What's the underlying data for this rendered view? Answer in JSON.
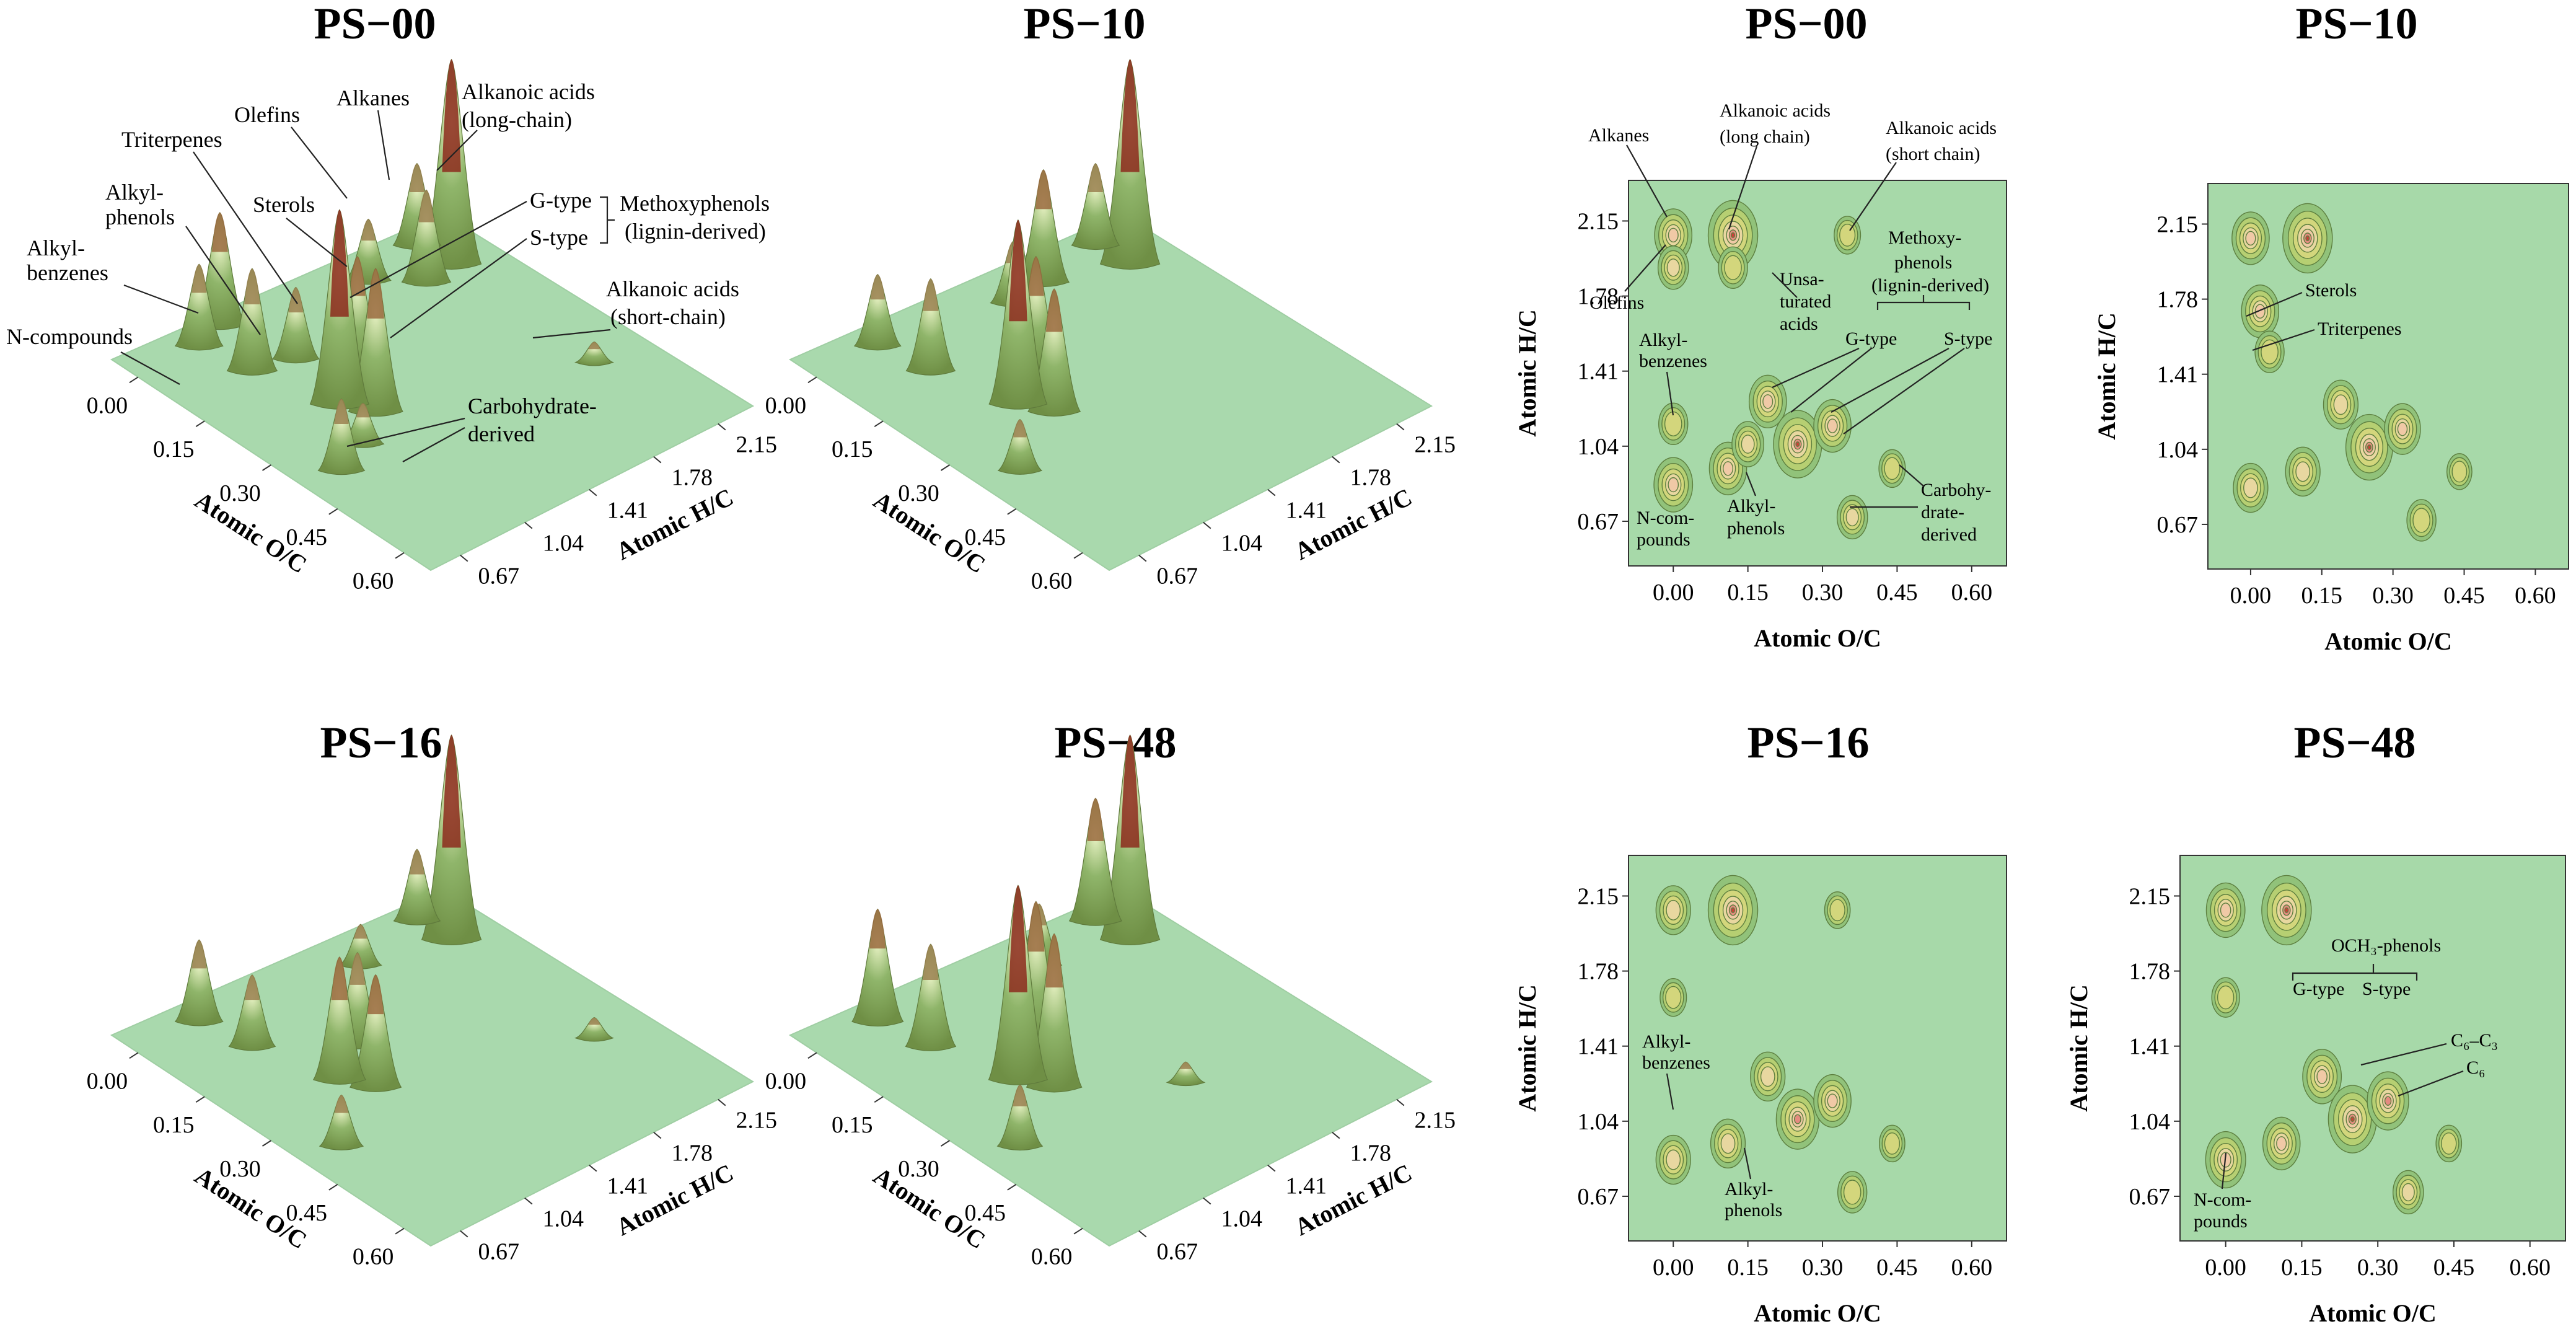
{
  "chart_data": [
    {
      "type": "surface3d",
      "title": "PS−00",
      "xlabel": "Atomic O/C",
      "ylabel": "Atomic H/C",
      "x_ticks": [
        "0.00",
        "0.15",
        "0.30",
        "0.45",
        "0.60"
      ],
      "y_ticks": [
        "0.67",
        "1.04",
        "1.41",
        "1.78",
        "2.15"
      ],
      "peaks": [
        {
          "x": 0.02,
          "y": 2.05,
          "h": 0.4
        },
        {
          "x": 0.04,
          "y": 1.72,
          "h": 0.3
        },
        {
          "x": 0.09,
          "y": 2.07,
          "h": 1.0
        },
        {
          "x": 0.1,
          "y": 1.9,
          "h": 0.45
        },
        {
          "x": -0.02,
          "y": 1.02,
          "h": 0.55
        },
        {
          "x": 0.0,
          "y": 0.85,
          "h": 0.4
        },
        {
          "x": 0.1,
          "y": 0.9,
          "h": 0.5
        },
        {
          "x": 0.12,
          "y": 1.1,
          "h": 0.35
        },
        {
          "x": 0.2,
          "y": 1.25,
          "h": 0.55
        },
        {
          "x": 0.25,
          "y": 1.02,
          "h": 0.95
        },
        {
          "x": 0.3,
          "y": 1.1,
          "h": 0.7
        },
        {
          "x": 0.38,
          "y": 0.7,
          "h": 0.35
        },
        {
          "x": 0.35,
          "y": 0.9,
          "h": 0.2
        },
        {
          "x": 0.42,
          "y": 2.05,
          "h": 0.1
        }
      ],
      "annotations": [
        "Olefins",
        "Alkanes",
        "Alkanoic acids",
        "(long-chain)",
        "Triterpenes",
        "Alkyl-",
        "phenols",
        "Sterols",
        "G-type",
        "S-type",
        "Methoxyphenols",
        "(lignin-derived)",
        "Alkyl-",
        "benzenes",
        "Alkanoic acids",
        "(short-chain)",
        "N-compounds",
        "Carbohydrate-",
        "derived"
      ]
    },
    {
      "type": "surface3d",
      "title": "PS−10",
      "xlabel": "Atomic O/C",
      "ylabel": "Atomic H/C",
      "x_ticks": [
        "0.00",
        "0.15",
        "0.30",
        "0.45",
        "0.60"
      ],
      "y_ticks": [
        "0.67",
        "1.04",
        "1.41",
        "1.78",
        "2.15"
      ],
      "peaks": [
        {
          "x": 0.02,
          "y": 2.05,
          "h": 0.4
        },
        {
          "x": 0.04,
          "y": 1.7,
          "h": 0.55
        },
        {
          "x": 0.09,
          "y": 2.07,
          "h": 1.0
        },
        {
          "x": 0.05,
          "y": 1.5,
          "h": 0.3
        },
        {
          "x": 0.0,
          "y": 0.85,
          "h": 0.35
        },
        {
          "x": 0.1,
          "y": 0.9,
          "h": 0.45
        },
        {
          "x": 0.2,
          "y": 1.25,
          "h": 0.55
        },
        {
          "x": 0.25,
          "y": 1.02,
          "h": 0.9
        },
        {
          "x": 0.3,
          "y": 1.1,
          "h": 0.6
        },
        {
          "x": 0.38,
          "y": 0.7,
          "h": 0.25
        }
      ]
    },
    {
      "type": "surface3d",
      "title": "PS−16",
      "xlabel": "Atomic O/C",
      "ylabel": "Atomic H/C",
      "x_ticks": [
        "0.00",
        "0.15",
        "0.30",
        "0.45",
        "0.60"
      ],
      "y_ticks": [
        "0.67",
        "1.04",
        "1.41",
        "1.78",
        "2.15"
      ],
      "peaks": [
        {
          "x": 0.02,
          "y": 2.05,
          "h": 0.35
        },
        {
          "x": 0.09,
          "y": 2.07,
          "h": 1.0
        },
        {
          "x": 0.05,
          "y": 1.65,
          "h": 0.2
        },
        {
          "x": 0.0,
          "y": 0.85,
          "h": 0.4
        },
        {
          "x": 0.1,
          "y": 0.9,
          "h": 0.35
        },
        {
          "x": 0.2,
          "y": 1.25,
          "h": 0.45
        },
        {
          "x": 0.25,
          "y": 1.02,
          "h": 0.6
        },
        {
          "x": 0.3,
          "y": 1.1,
          "h": 0.55
        },
        {
          "x": 0.38,
          "y": 0.7,
          "h": 0.25
        },
        {
          "x": 0.42,
          "y": 2.05,
          "h": 0.1
        }
      ]
    },
    {
      "type": "surface3d",
      "title": "PS−48",
      "xlabel": "Atomic O/C",
      "ylabel": "Atomic H/C",
      "x_ticks": [
        "0.00",
        "0.15",
        "0.30",
        "0.45",
        "0.60"
      ],
      "y_ticks": [
        "0.67",
        "1.04",
        "1.41",
        "1.78",
        "2.15"
      ],
      "peaks": [
        {
          "x": 0.02,
          "y": 2.05,
          "h": 0.6
        },
        {
          "x": 0.09,
          "y": 2.07,
          "h": 1.0
        },
        {
          "x": 0.05,
          "y": 1.65,
          "h": 0.3
        },
        {
          "x": 0.0,
          "y": 0.85,
          "h": 0.55
        },
        {
          "x": 0.1,
          "y": 0.9,
          "h": 0.5
        },
        {
          "x": 0.2,
          "y": 1.25,
          "h": 0.7
        },
        {
          "x": 0.25,
          "y": 1.02,
          "h": 0.95
        },
        {
          "x": 0.3,
          "y": 1.1,
          "h": 0.75
        },
        {
          "x": 0.38,
          "y": 0.7,
          "h": 0.3
        },
        {
          "x": 0.42,
          "y": 1.55,
          "h": 0.1
        }
      ]
    },
    {
      "type": "contour",
      "title": "PS−00",
      "xlabel": "Atomic O/C",
      "ylabel": "Atomic H/C",
      "x_ticks": [
        "0.00",
        "0.15",
        "0.30",
        "0.45",
        "0.60"
      ],
      "y_ticks": [
        "0.67",
        "1.04",
        "1.41",
        "1.78",
        "2.15"
      ],
      "xlim": [
        -0.09,
        0.67
      ],
      "ylim": [
        0.45,
        2.35
      ],
      "peaks": [
        {
          "x": 0.0,
          "y": 2.08,
          "h": 0.55
        },
        {
          "x": 0.12,
          "y": 2.08,
          "h": 1.0
        },
        {
          "x": 0.0,
          "y": 1.92,
          "h": 0.3
        },
        {
          "x": 0.35,
          "y": 2.08,
          "h": 0.15
        },
        {
          "x": 0.12,
          "y": 1.92,
          "h": 0.25
        },
        {
          "x": 0.0,
          "y": 1.15,
          "h": 0.25
        },
        {
          "x": 0.0,
          "y": 0.85,
          "h": 0.6
        },
        {
          "x": 0.11,
          "y": 0.93,
          "h": 0.55
        },
        {
          "x": 0.19,
          "y": 1.26,
          "h": 0.55
        },
        {
          "x": 0.25,
          "y": 1.05,
          "h": 0.95
        },
        {
          "x": 0.32,
          "y": 1.14,
          "h": 0.55
        },
        {
          "x": 0.36,
          "y": 0.69,
          "h": 0.3
        },
        {
          "x": 0.44,
          "y": 0.93,
          "h": 0.15
        },
        {
          "x": 0.15,
          "y": 1.05,
          "h": 0.35
        }
      ],
      "annotations": [
        "Alkanes",
        "Alkanoic acids",
        "(long chain)",
        "Alkanoic acids",
        "(short chain)",
        "Methoxy-",
        "phenols",
        "(lignin-derived)",
        "Olefins",
        "Unsa-",
        "turated",
        "acids",
        "Alkyl-",
        "benzenes",
        "G-type",
        "S-type",
        "N-com-",
        "pounds",
        "Alkyl-",
        "phenols",
        "Carbohy-",
        "drate-",
        "derived"
      ]
    },
    {
      "type": "contour",
      "title": "PS−10",
      "xlabel": "Atomic O/C",
      "ylabel": "Atomic H/C",
      "x_ticks": [
        "0.00",
        "0.15",
        "0.30",
        "0.45",
        "0.60"
      ],
      "y_ticks": [
        "0.67",
        "1.04",
        "1.41",
        "1.78",
        "2.15"
      ],
      "xlim": [
        -0.09,
        0.67
      ],
      "ylim": [
        0.45,
        2.35
      ],
      "peaks": [
        {
          "x": 0.0,
          "y": 2.08,
          "h": 0.55
        },
        {
          "x": 0.12,
          "y": 2.08,
          "h": 1.0
        },
        {
          "x": 0.02,
          "y": 1.72,
          "h": 0.55
        },
        {
          "x": 0.04,
          "y": 1.52,
          "h": 0.25
        },
        {
          "x": 0.0,
          "y": 0.85,
          "h": 0.45
        },
        {
          "x": 0.11,
          "y": 0.93,
          "h": 0.45
        },
        {
          "x": 0.19,
          "y": 1.26,
          "h": 0.45
        },
        {
          "x": 0.25,
          "y": 1.05,
          "h": 0.9
        },
        {
          "x": 0.32,
          "y": 1.14,
          "h": 0.5
        },
        {
          "x": 0.36,
          "y": 0.69,
          "h": 0.25
        },
        {
          "x": 0.44,
          "y": 0.93,
          "h": 0.1
        }
      ],
      "annotations": [
        "Sterols",
        "Triterpenes"
      ]
    },
    {
      "type": "contour",
      "title": "PS−16",
      "xlabel": "Atomic O/C",
      "ylabel": "Atomic H/C",
      "x_ticks": [
        "0.00",
        "0.15",
        "0.30",
        "0.45",
        "0.60"
      ],
      "y_ticks": [
        "0.67",
        "1.04",
        "1.41",
        "1.78",
        "2.15"
      ],
      "xlim": [
        -0.09,
        0.67
      ],
      "ylim": [
        0.45,
        2.35
      ],
      "peaks": [
        {
          "x": 0.0,
          "y": 2.08,
          "h": 0.45
        },
        {
          "x": 0.12,
          "y": 2.08,
          "h": 1.0
        },
        {
          "x": 0.33,
          "y": 2.08,
          "h": 0.12
        },
        {
          "x": 0.0,
          "y": 1.65,
          "h": 0.15
        },
        {
          "x": 0.0,
          "y": 0.85,
          "h": 0.45
        },
        {
          "x": 0.11,
          "y": 0.93,
          "h": 0.45
        },
        {
          "x": 0.19,
          "y": 1.26,
          "h": 0.45
        },
        {
          "x": 0.25,
          "y": 1.05,
          "h": 0.75
        },
        {
          "x": 0.32,
          "y": 1.14,
          "h": 0.55
        },
        {
          "x": 0.36,
          "y": 0.69,
          "h": 0.25
        },
        {
          "x": 0.44,
          "y": 0.93,
          "h": 0.12
        }
      ],
      "annotations": [
        "Alkyl-",
        "benzenes",
        "Alkyl-",
        "phenols"
      ]
    },
    {
      "type": "contour",
      "title": "PS−48",
      "xlabel": "Atomic O/C",
      "ylabel": "Atomic H/C",
      "x_ticks": [
        "0.00",
        "0.15",
        "0.30",
        "0.45",
        "0.60"
      ],
      "y_ticks": [
        "0.67",
        "1.04",
        "1.41",
        "1.78",
        "2.15"
      ],
      "xlim": [
        -0.09,
        0.67
      ],
      "ylim": [
        0.45,
        2.35
      ],
      "peaks": [
        {
          "x": 0.0,
          "y": 2.08,
          "h": 0.6
        },
        {
          "x": 0.12,
          "y": 2.08,
          "h": 1.0
        },
        {
          "x": 0.0,
          "y": 1.65,
          "h": 0.2
        },
        {
          "x": 0.0,
          "y": 0.85,
          "h": 0.65
        },
        {
          "x": 0.11,
          "y": 0.93,
          "h": 0.55
        },
        {
          "x": 0.19,
          "y": 1.26,
          "h": 0.6
        },
        {
          "x": 0.25,
          "y": 1.05,
          "h": 0.95
        },
        {
          "x": 0.32,
          "y": 1.14,
          "h": 0.7
        },
        {
          "x": 0.36,
          "y": 0.69,
          "h": 0.3
        },
        {
          "x": 0.44,
          "y": 0.93,
          "h": 0.12
        }
      ],
      "annotations": [
        "OCH₃-phenols",
        "G-type",
        "S-type",
        "C₆–C₃",
        "C₆",
        "N-com-",
        "pounds"
      ]
    }
  ]
}
